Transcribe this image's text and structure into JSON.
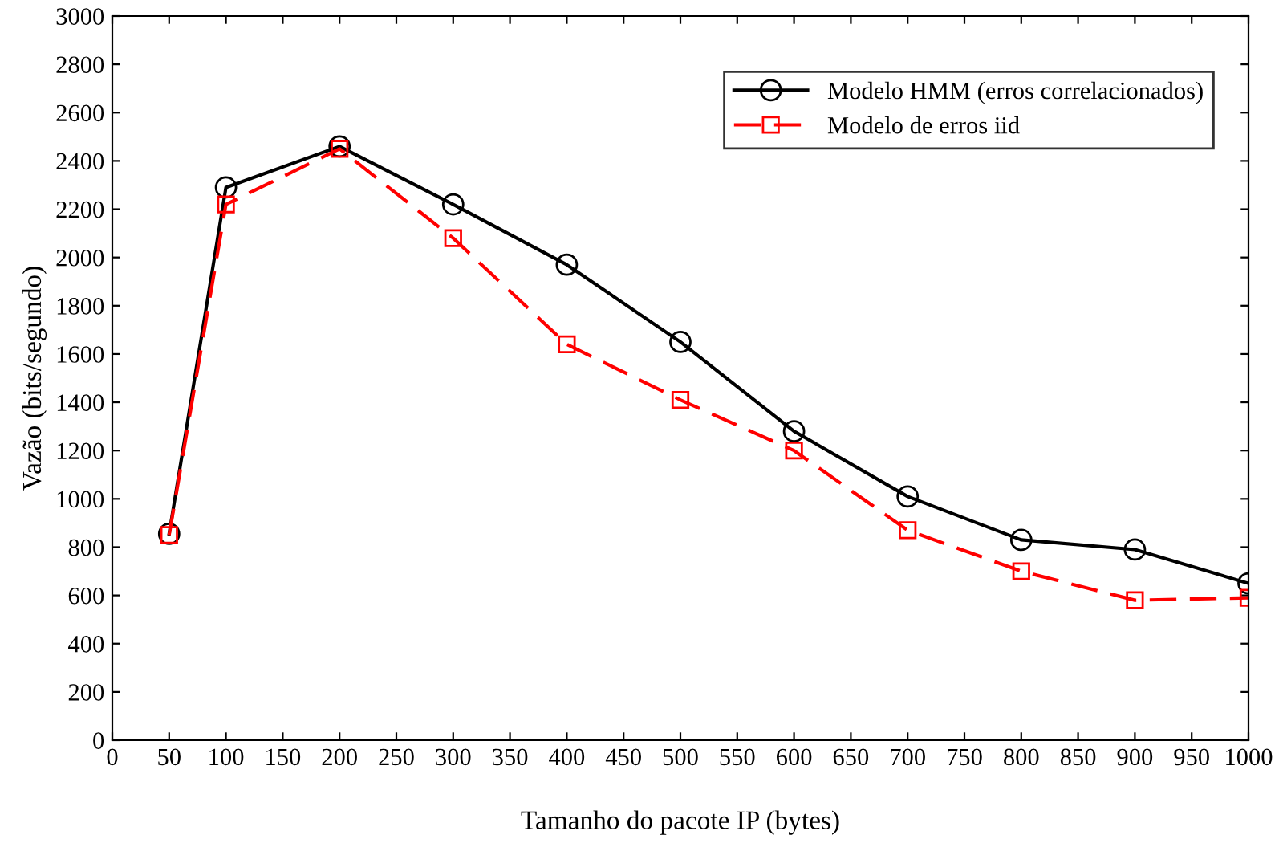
{
  "chart_data": {
    "type": "line",
    "xlabel": "Tamanho do pacote IP (bytes)",
    "ylabel": "Vazão (bits/segundo)",
    "x": [
      50,
      100,
      200,
      300,
      400,
      500,
      600,
      700,
      800,
      900,
      1000
    ],
    "series": [
      {
        "name": "Modelo HMM (erros correlacionados)",
        "color": "#000000",
        "marker": "circle",
        "line_style": "solid",
        "values": [
          855,
          2290,
          2460,
          2220,
          1970,
          1650,
          1280,
          1010,
          830,
          790,
          650
        ]
      },
      {
        "name": "Modelo de erros iid",
        "color": "#ff0000",
        "marker": "square",
        "line_style": "dashed",
        "values": [
          850,
          2220,
          2450,
          2080,
          1640,
          1410,
          1200,
          870,
          700,
          580,
          590
        ]
      }
    ],
    "xlim": [
      0,
      1000
    ],
    "ylim": [
      0,
      3000
    ],
    "xticks": [
      0,
      50,
      100,
      150,
      200,
      250,
      300,
      350,
      400,
      450,
      500,
      550,
      600,
      650,
      700,
      750,
      800,
      850,
      900,
      950,
      1000
    ],
    "yticks": [
      0,
      200,
      400,
      600,
      800,
      1000,
      1200,
      1400,
      1600,
      1800,
      2000,
      2200,
      2400,
      2600,
      2800,
      3000
    ],
    "grid": false,
    "legend": "top right"
  }
}
